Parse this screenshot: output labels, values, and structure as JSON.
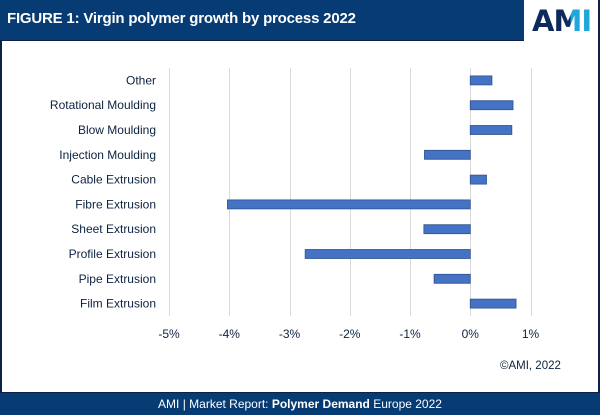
{
  "header": {
    "title": "FIGURE 1: Virgin polymer growth by process 2022",
    "logo": {
      "a": "A",
      "m": "M",
      "i": "I"
    }
  },
  "colors": {
    "header_bg": "#063b73",
    "bar_fill": "#4472C4",
    "bar_stroke": "#2F528F",
    "logo_dark": "#0d2a5a",
    "logo_accent": "#1fa7dc",
    "gridline": "#d9d9d9"
  },
  "copyright": "©AMI, 2022",
  "footer": {
    "prefix": "AMI | Market Report: ",
    "bold": "Polymer Demand",
    "suffix": " Europe 2022"
  },
  "chart_data": {
    "type": "bar",
    "orientation": "horizontal",
    "title": "FIGURE 1: Virgin polymer growth by process 2022",
    "xlabel": "",
    "ylabel": "",
    "categories": [
      "Other",
      "Rotational Moulding",
      "Blow Moulding",
      "Injection Moulding",
      "Cable Extrusion",
      "Fibre Extrusion",
      "Sheet Extrusion",
      "Profile Extrusion",
      "Pipe Extrusion",
      "Film Extrusion"
    ],
    "values": [
      0.36,
      0.71,
      0.69,
      -0.76,
      0.27,
      -4.03,
      -0.77,
      -2.74,
      -0.6,
      0.76
    ],
    "unit": "%",
    "xlim": [
      -5,
      1
    ],
    "xticks": [
      -5,
      -4,
      -3,
      -2,
      -1,
      0,
      1
    ],
    "xtick_labels": [
      "-5%",
      "-4%",
      "-3%",
      "-2%",
      "-1%",
      "0%",
      "1%"
    ],
    "grid": "vertical",
    "legend": "none"
  }
}
